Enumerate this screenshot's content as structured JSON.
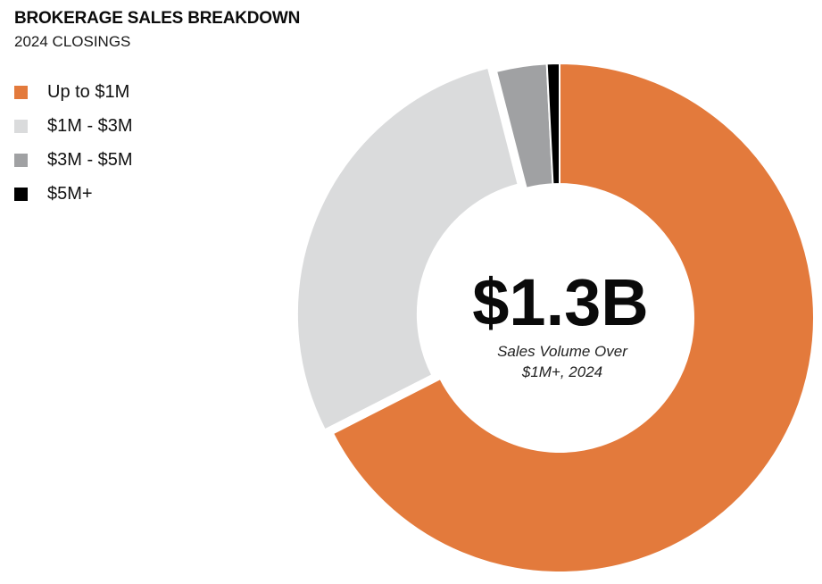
{
  "header": {
    "title": "BROKERAGE SALES BREAKDOWN",
    "subtitle": "2024 CLOSINGS"
  },
  "legend": [
    {
      "label": "Up to $1M",
      "color": "#E37A3C"
    },
    {
      "label": "$1M - $3M",
      "color": "#DADBDC"
    },
    {
      "label": "$3M - $5M",
      "color": "#A0A1A3"
    },
    {
      "label": "$5M+",
      "color": "#000000"
    }
  ],
  "center": {
    "value": "$1.3B",
    "caption_line1": "Sales Volume Over",
    "caption_line2": "$1M+, 2024"
  },
  "chart_data": {
    "type": "pie",
    "title": "BROKERAGE SALES BREAKDOWN",
    "subtitle": "2024 CLOSINGS",
    "categories": [
      "Up to $1M",
      "$1M - $3M",
      "$3M - $5M",
      "$5M+"
    ],
    "values": [
      67.5,
      28.5,
      3.2,
      0.8
    ],
    "unit": "%",
    "colors": [
      "#E37A3C",
      "#DADBDC",
      "#A0A1A3",
      "#000000"
    ],
    "donut": true,
    "explode_index": 1,
    "legend_position": "top-left",
    "center_text": "$1.3B",
    "center_caption": [
      "Sales Volume Over",
      "$1M+, 2024"
    ]
  }
}
